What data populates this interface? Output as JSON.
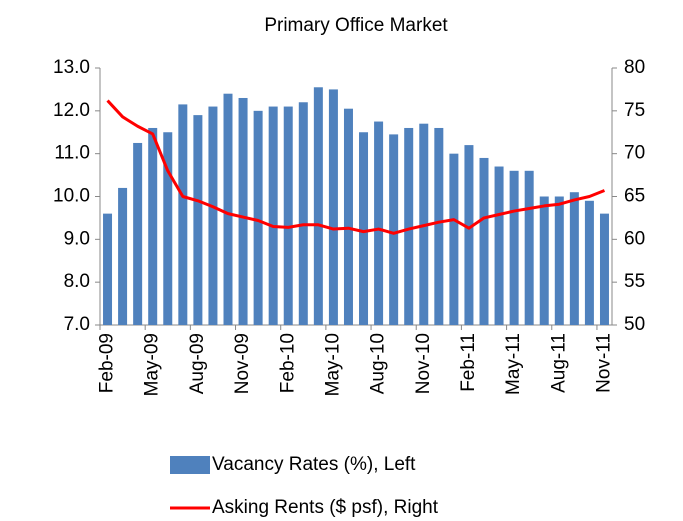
{
  "chart_data": {
    "type": "bar_line",
    "title": "Primary Office Market",
    "categories": [
      "Feb-09",
      null,
      null,
      "May-09",
      null,
      null,
      "Aug-09",
      null,
      null,
      "Nov-09",
      null,
      null,
      "Feb-10",
      null,
      null,
      "May-10",
      null,
      null,
      "Aug-10",
      null,
      null,
      "Nov-10",
      null,
      null,
      "Feb-11",
      null,
      null,
      "May-11",
      null,
      null,
      "Aug-11",
      null,
      null,
      "Nov-11"
    ],
    "series": [
      {
        "name": "Vacancy Rates (%), Left",
        "type": "bar",
        "axis": "y",
        "color": "#4f81bd",
        "values": [
          9.6,
          10.2,
          11.25,
          11.6,
          11.5,
          12.15,
          11.9,
          12.1,
          12.4,
          12.3,
          12.0,
          12.1,
          12.1,
          12.2,
          12.55,
          12.5,
          12.05,
          11.5,
          11.75,
          11.45,
          11.6,
          11.7,
          11.6,
          11.0,
          11.2,
          10.9,
          10.7,
          10.6,
          10.6,
          10.0,
          10.0,
          10.1,
          9.9,
          9.6
        ]
      },
      {
        "name": "Asking Rents ($ psf), Right",
        "type": "line",
        "axis": "y2",
        "color": "#ff0000",
        "values": [
          76.2,
          74.3,
          73.2,
          72.3,
          68,
          65,
          64.5,
          63.8,
          63,
          62.6,
          62.2,
          61.5,
          61.4,
          61.7,
          61.7,
          61.2,
          61.3,
          60.9,
          61.2,
          60.7,
          61.2,
          61.6,
          62,
          62.3,
          61.3,
          62.5,
          62.9,
          63.3,
          63.6,
          63.9,
          64.1,
          64.6,
          65,
          65.7
        ]
      }
    ],
    "ylim": [
      7,
      13
    ],
    "yticks": [
      {
        "value": 7,
        "label": "7.0"
      },
      {
        "value": 8,
        "label": "8.0"
      },
      {
        "value": 9,
        "label": "9.0"
      },
      {
        "value": 10,
        "label": "10.0"
      },
      {
        "value": 11,
        "label": "11.0"
      },
      {
        "value": 12,
        "label": "12.0"
      },
      {
        "value": 13,
        "label": "13.0"
      }
    ],
    "y2lim": [
      50,
      80
    ],
    "y2ticks": [
      50,
      55,
      60,
      65,
      70,
      75,
      80
    ],
    "legend": "bottom"
  }
}
